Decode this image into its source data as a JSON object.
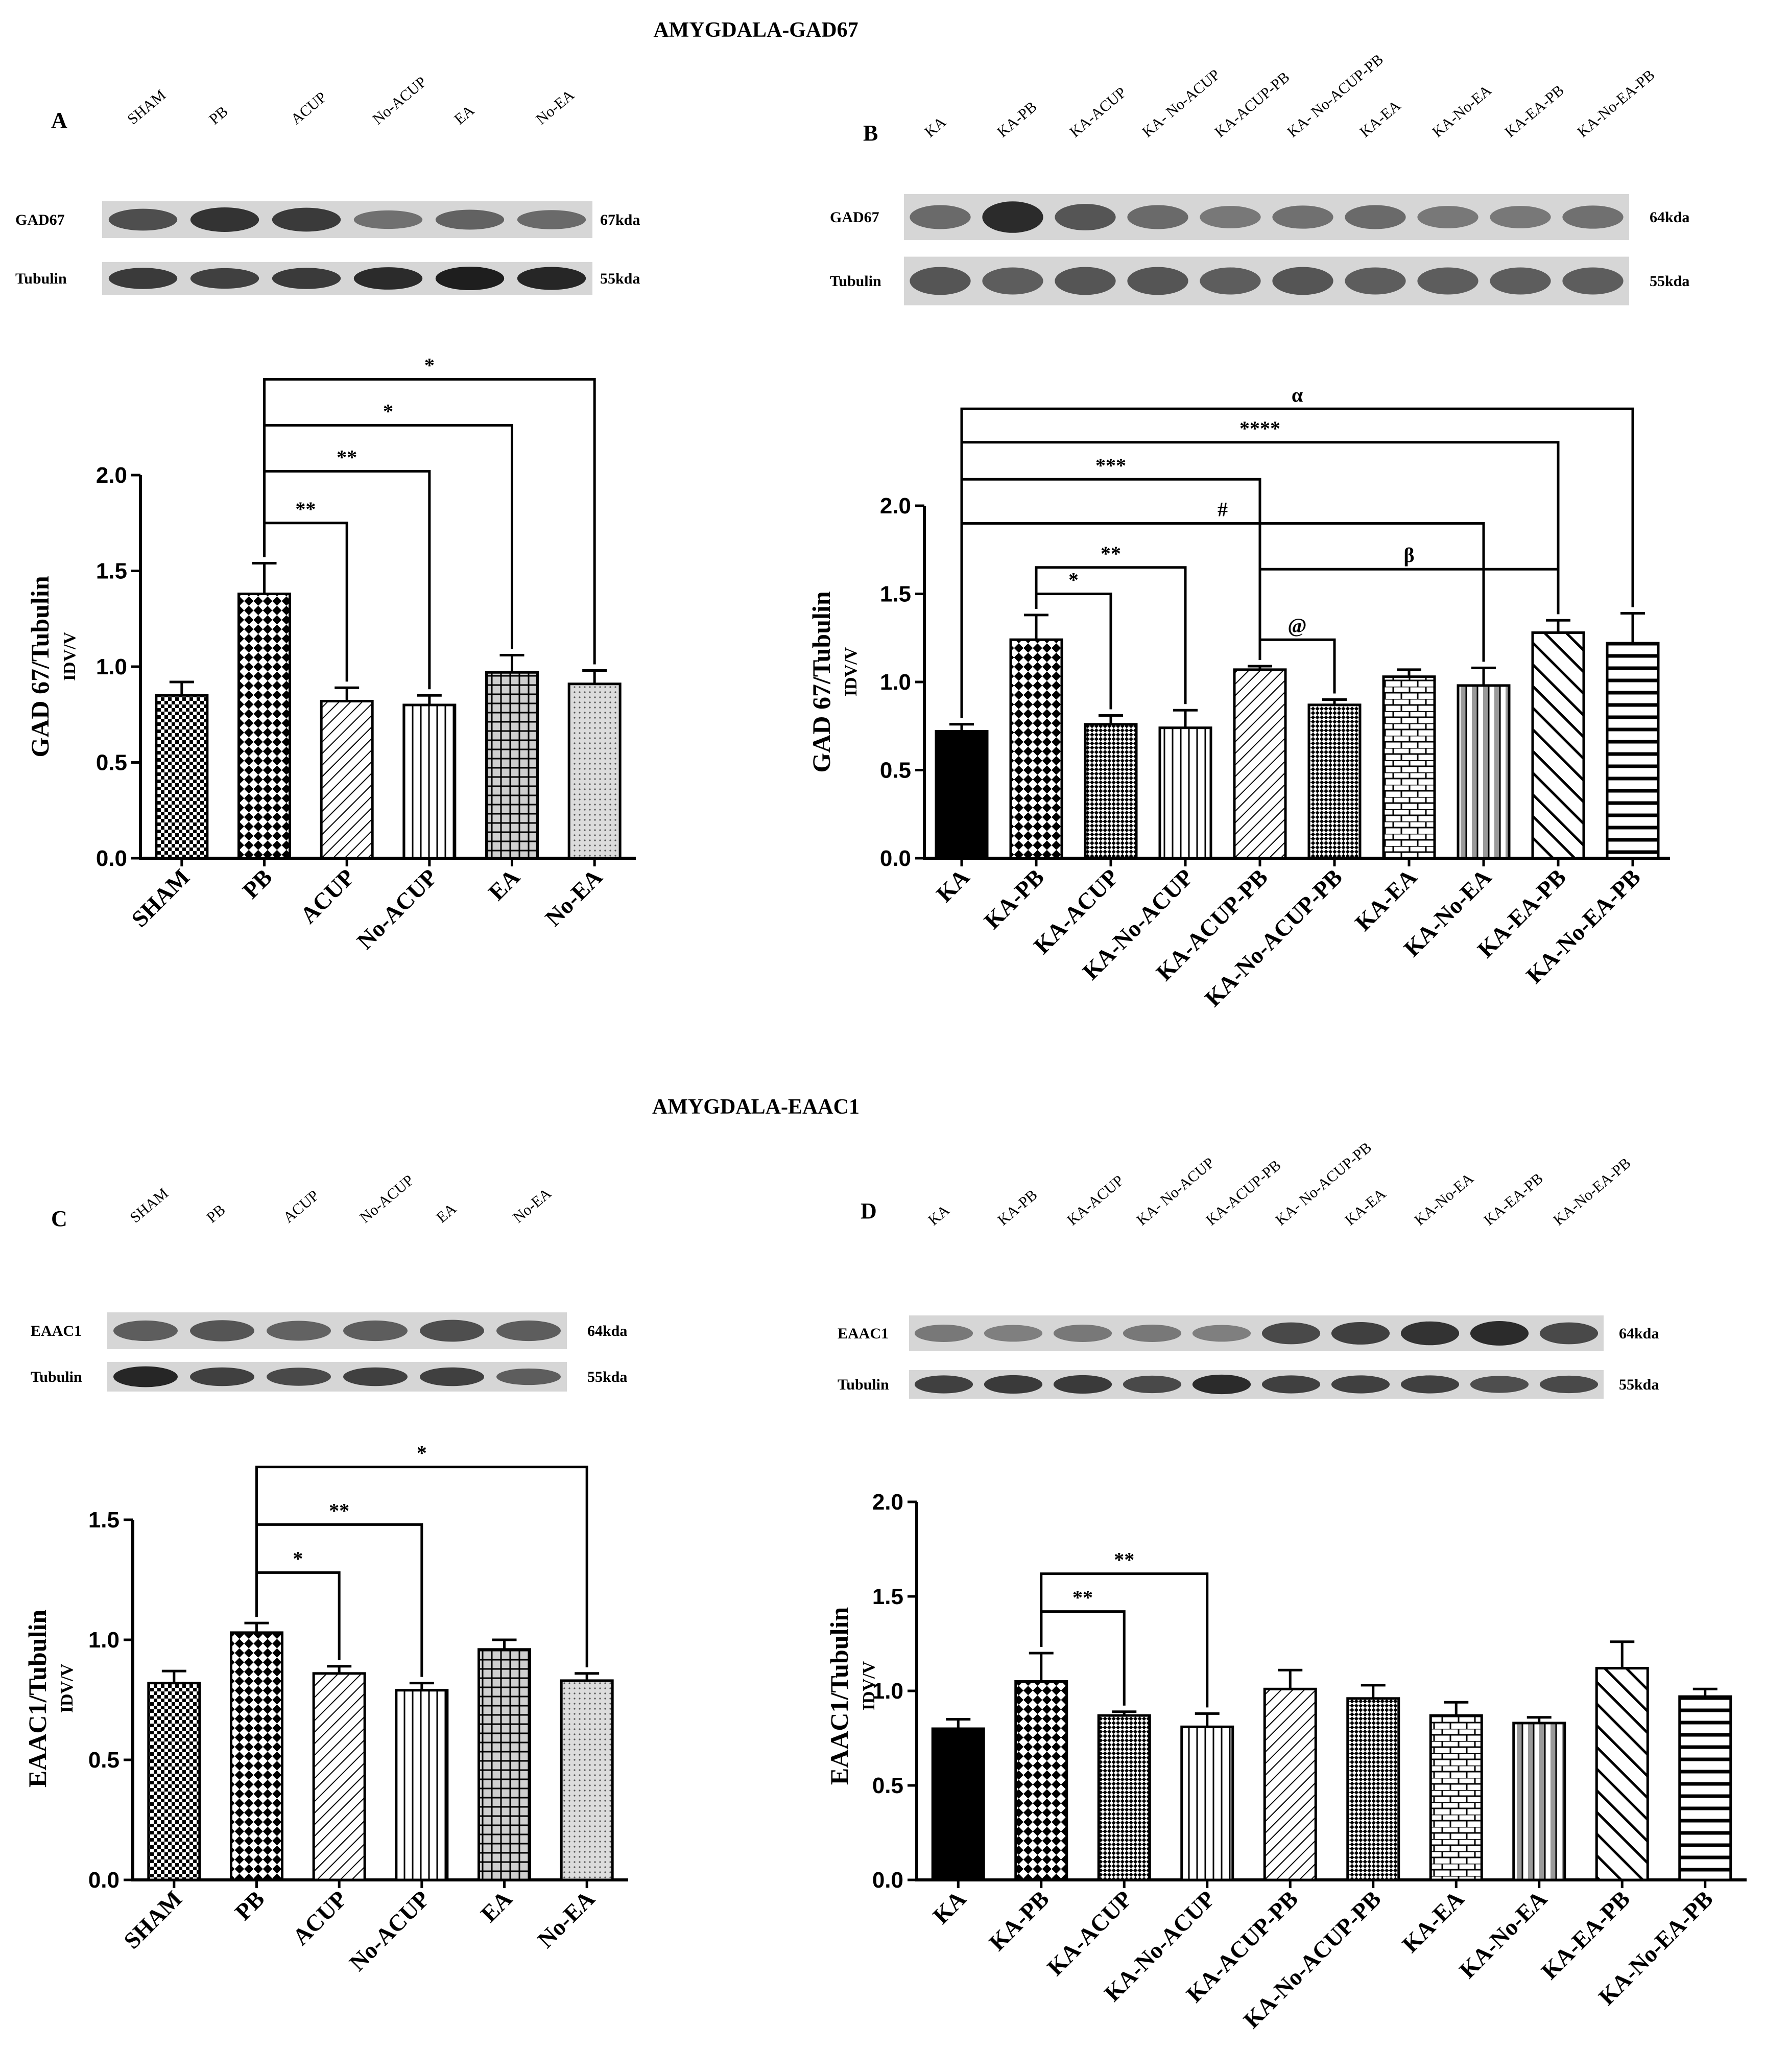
{
  "figure": {
    "title_gad67": "AMYGDALA-GAD67",
    "title_eaac1": "AMYGDALA-EAAC1"
  },
  "colors": {
    "ink": "#000000",
    "paper": "#ffffff",
    "blot_bg": "#d6d6d6",
    "band": "#1e1e1e"
  },
  "panels": [
    {
      "id": "A",
      "letter": "A",
      "blot": {
        "lanes": [
          "SHAM",
          "PB",
          "ACUP",
          "No-ACUP",
          "EA",
          "No-EA"
        ],
        "rows": [
          {
            "label": "GAD67",
            "kda": "67kda",
            "intensities": [
              0.65,
              0.85,
              0.8,
              0.4,
              0.5,
              0.45
            ]
          },
          {
            "label": "Tubulin",
            "kda": "55kda",
            "intensities": [
              0.8,
              0.75,
              0.8,
              0.9,
              1.0,
              0.95
            ]
          }
        ]
      },
      "chart_data": {
        "type": "bar",
        "ylabel": "GAD 67/Tubulin",
        "ylabel_sub": "IDV/V",
        "ylim": [
          0,
          2.0
        ],
        "yticks": [
          "0.0",
          "0.5",
          "1.0",
          "1.5",
          "2.0"
        ],
        "categories": [
          "SHAM",
          "PB",
          "ACUP",
          "No-ACUP",
          "EA",
          "No-EA"
        ],
        "values": [
          0.85,
          1.38,
          0.82,
          0.8,
          0.97,
          0.91
        ],
        "errors": [
          0.07,
          0.16,
          0.07,
          0.05,
          0.09,
          0.07
        ],
        "patterns": [
          "checker",
          "bigcheck",
          "diag",
          "vert",
          "grid",
          "dots"
        ],
        "comparisons": [
          {
            "from": 1,
            "to": 2,
            "label": "**",
            "level": 1.75
          },
          {
            "from": 1,
            "to": 3,
            "label": "**",
            "level": 2.02
          },
          {
            "from": 1,
            "to": 4,
            "label": "*",
            "level": 2.26
          },
          {
            "from": 1,
            "to": 5,
            "label": "*",
            "level": 2.5
          }
        ]
      }
    },
    {
      "id": "B",
      "letter": "B",
      "blot": {
        "lanes": [
          "KA",
          "KA-PB",
          "KA-ACUP",
          "KA- No-ACUP",
          "KA-ACUP-PB",
          "KA- No-ACUP-PB",
          "KA-EA",
          "KA-No-EA",
          "KA-EA-PB",
          "KA-No-EA-PB"
        ],
        "rows": [
          {
            "label": "GAD67",
            "kda": "64kda",
            "intensities": [
              0.45,
              0.9,
              0.6,
              0.45,
              0.35,
              0.4,
              0.45,
              0.35,
              0.35,
              0.4
            ]
          },
          {
            "label": "Tubulin",
            "kda": "55kda",
            "intensities": [
              0.6,
              0.55,
              0.6,
              0.6,
              0.55,
              0.6,
              0.55,
              0.55,
              0.55,
              0.55
            ]
          }
        ]
      },
      "chart_data": {
        "type": "bar",
        "ylabel": "GAD 67/Tubulin",
        "ylabel_sub": "IDV/V",
        "ylim": [
          0,
          2.0
        ],
        "yticks": [
          "0.0",
          "0.5",
          "1.0",
          "1.5",
          "2.0"
        ],
        "categories": [
          "KA",
          "KA-PB",
          "KA-ACUP",
          "KA-No-ACUP",
          "KA-ACUP-PB",
          "KA-No-ACUP-PB",
          "KA-EA",
          "KA-No-EA",
          "KA-EA-PB",
          "KA-No-EA-PB"
        ],
        "values": [
          0.72,
          1.24,
          0.76,
          0.74,
          1.07,
          0.87,
          1.03,
          0.98,
          1.28,
          1.22
        ],
        "errors": [
          0.04,
          0.14,
          0.05,
          0.1,
          0.02,
          0.03,
          0.04,
          0.1,
          0.07,
          0.17
        ],
        "patterns": [
          "solid",
          "bigcheck",
          "smallcheck",
          "vert",
          "diag",
          "smallcheck",
          "brick",
          "vertgray",
          "bigdiag",
          "horiz"
        ],
        "comparisons": [
          {
            "from": 0,
            "to": 9,
            "label": "α",
            "level": 2.55
          },
          {
            "from": 0,
            "to": 8,
            "label": "****",
            "level": 2.36
          },
          {
            "from": 0,
            "to": 4,
            "label": "***",
            "level": 2.15
          },
          {
            "from": 0,
            "to": 7,
            "label": "#",
            "level": 1.9
          },
          {
            "from": 1,
            "to": 3,
            "label": "**",
            "level": 1.65
          },
          {
            "from": 1,
            "to": 2,
            "label": "*",
            "level": 1.5
          },
          {
            "from": 4,
            "to": 8,
            "label": "β",
            "level": 1.64
          },
          {
            "from": 4,
            "to": 5,
            "label": "@",
            "level": 1.24
          }
        ]
      }
    },
    {
      "id": "C",
      "letter": "C",
      "blot": {
        "lanes": [
          "SHAM",
          "PB",
          "ACUP",
          "No-ACUP",
          "EA",
          "No-EA"
        ],
        "rows": [
          {
            "label": "EAAC1",
            "kda": "64kda",
            "intensities": [
              0.55,
              0.6,
              0.5,
              0.55,
              0.65,
              0.55
            ]
          },
          {
            "label": "Tubulin",
            "kda": "55kda",
            "intensities": [
              0.95,
              0.75,
              0.7,
              0.75,
              0.75,
              0.55
            ]
          }
        ]
      },
      "chart_data": {
        "type": "bar",
        "ylabel": "EAAC1/Tubulin",
        "ylabel_sub": "IDV/V",
        "ylim": [
          0,
          1.5
        ],
        "yticks": [
          "0.0",
          "0.5",
          "1.0",
          "1.5"
        ],
        "categories": [
          "SHAM",
          "PB",
          "ACUP",
          "No-ACUP",
          "EA",
          "No-EA"
        ],
        "values": [
          0.82,
          1.03,
          0.86,
          0.79,
          0.96,
          0.83
        ],
        "errors": [
          0.05,
          0.04,
          0.03,
          0.03,
          0.04,
          0.03
        ],
        "patterns": [
          "checker",
          "bigcheck",
          "diag",
          "vert",
          "grid",
          "dots"
        ],
        "comparisons": [
          {
            "from": 1,
            "to": 2,
            "label": "*",
            "level": 1.28
          },
          {
            "from": 1,
            "to": 3,
            "label": "**",
            "level": 1.48
          },
          {
            "from": 1,
            "to": 5,
            "label": "*",
            "level": 1.72
          }
        ]
      }
    },
    {
      "id": "D",
      "letter": "D",
      "blot": {
        "lanes": [
          "KA",
          "KA-PB",
          "KA-ACUP",
          "KA- No-ACUP",
          "KA-ACUP-PB",
          "KA- No-ACUP-PB",
          "KA-EA",
          "KA-No-EA",
          "KA-EA-PB",
          "KA-No-EA-PB"
        ],
        "rows": [
          {
            "label": "EAAC1",
            "kda": "64kda",
            "intensities": [
              0.35,
              0.3,
              0.35,
              0.35,
              0.3,
              0.7,
              0.75,
              0.85,
              0.9,
              0.7
            ]
          },
          {
            "label": "Tubulin",
            "kda": "55kda",
            "intensities": [
              0.75,
              0.8,
              0.8,
              0.7,
              0.9,
              0.75,
              0.75,
              0.75,
              0.65,
              0.7
            ]
          }
        ]
      },
      "chart_data": {
        "type": "bar",
        "ylabel": "EAAC1/Tubulin",
        "ylabel_sub": "IDV/V",
        "ylim": [
          0,
          2.0
        ],
        "yticks": [
          "0.0",
          "0.5",
          "1.0",
          "1.5",
          "2.0"
        ],
        "categories": [
          "KA",
          "KA-PB",
          "KA-ACUP",
          "KA-No-ACUP",
          "KA-ACUP-PB",
          "KA-No-ACUP-PB",
          "KA-EA",
          "KA-No-EA",
          "KA-EA-PB",
          "KA-No-EA-PB"
        ],
        "values": [
          0.8,
          1.05,
          0.87,
          0.81,
          1.01,
          0.96,
          0.87,
          0.83,
          1.12,
          0.97
        ],
        "errors": [
          0.05,
          0.15,
          0.02,
          0.07,
          0.1,
          0.07,
          0.07,
          0.03,
          0.14,
          0.04
        ],
        "patterns": [
          "solid",
          "bigcheck",
          "smallcheck",
          "vert",
          "diag",
          "smallcheck",
          "brick",
          "vertgray",
          "bigdiag",
          "horiz"
        ],
        "comparisons": [
          {
            "from": 1,
            "to": 2,
            "label": "**",
            "level": 1.42
          },
          {
            "from": 1,
            "to": 3,
            "label": "**",
            "level": 1.62
          }
        ]
      }
    }
  ]
}
